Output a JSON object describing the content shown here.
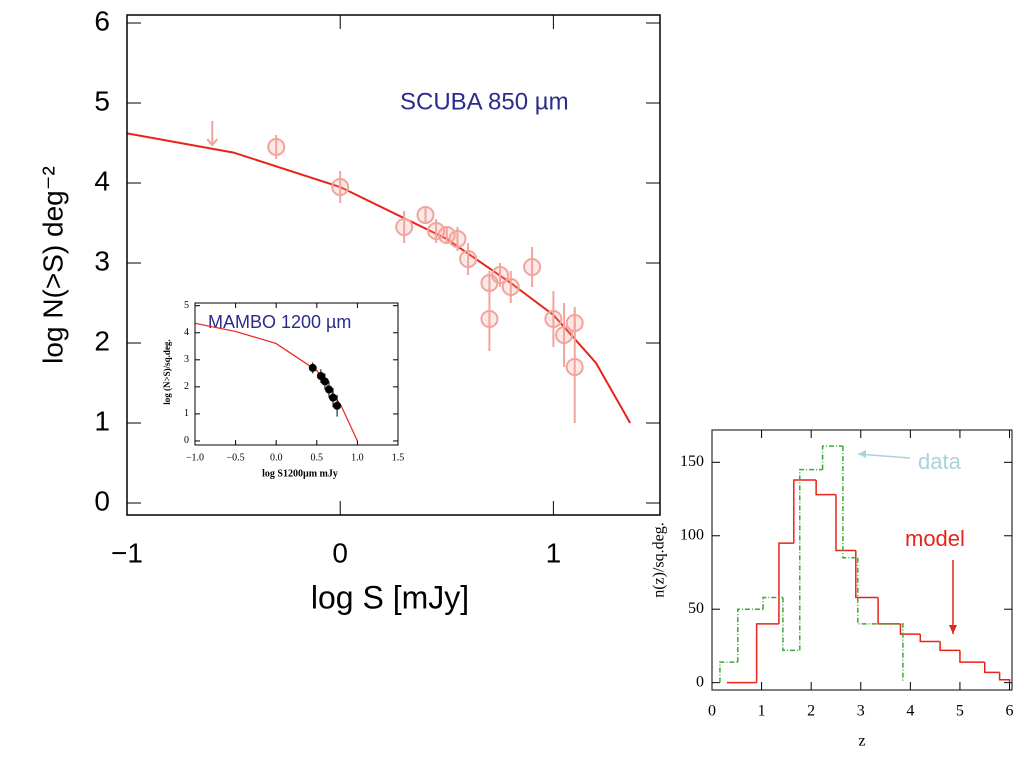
{
  "chart_data": [
    {
      "type": "scatter",
      "title": "SCUBA 850 µm",
      "xlabel": "log S [mJy]",
      "ylabel": "log N(>S) deg⁻²",
      "xlim": [
        -1,
        1.5
      ],
      "ylim": [
        -0.15,
        6.1
      ],
      "xticks": [
        {
          "value": -1,
          "label": "−1"
        },
        0,
        1
      ],
      "yticks": [
        0,
        1,
        2,
        3,
        4,
        5,
        6
      ],
      "model": {
        "color": "#e8231a",
        "x": [
          -1,
          -0.5,
          0,
          0.5,
          0.8,
          1.0,
          1.2,
          1.36
        ],
        "values": [
          4.62,
          4.38,
          3.95,
          3.3,
          2.75,
          2.35,
          1.75,
          1.0
        ]
      },
      "data": {
        "color": "#f2a49c",
        "x": [
          -0.3,
          0.0,
          0.3,
          0.4,
          0.45,
          0.5,
          0.55,
          0.6,
          0.7,
          0.7,
          0.75,
          0.8,
          0.9,
          1.0,
          1.05,
          1.1,
          1.1
        ],
        "values": [
          4.45,
          3.95,
          3.45,
          3.6,
          3.4,
          3.35,
          3.3,
          3.05,
          2.75,
          2.3,
          2.85,
          2.7,
          2.95,
          2.3,
          2.1,
          1.7,
          2.25
        ],
        "errors": [
          0.15,
          0.2,
          0.2,
          0.1,
          0.15,
          0.1,
          0.15,
          0.2,
          0.15,
          0.4,
          0.15,
          0.2,
          0.25,
          0.35,
          0.4,
          0.7,
          0.2
        ]
      },
      "limits": {
        "x": [
          -0.6
        ],
        "values": [
          4.65
        ]
      }
    },
    {
      "type": "scatter",
      "title": "MAMBO 1200 µm",
      "xlabel": "log S1200µm mJy",
      "ylabel": "log (N>S)/sq.deg.",
      "xlim": [
        -1.0,
        1.5
      ],
      "ylim": [
        -0.15,
        5.1
      ],
      "xticks": [
        {
          "value": -1.0,
          "label": "−1.0"
        },
        {
          "value": -0.5,
          "label": "−0.5"
        },
        {
          "value": 0.0,
          "label": "0.0"
        },
        0.5,
        {
          "value": 1.0,
          "label": "1.0"
        },
        1.5
      ],
      "yticks": [
        0,
        1,
        2,
        3,
        4,
        5
      ],
      "model": {
        "color": "#e8231a",
        "x": [
          -1,
          -0.5,
          0,
          0.5,
          0.8,
          1.0
        ],
        "values": [
          4.35,
          4.05,
          3.6,
          2.6,
          1.3,
          0
        ]
      },
      "data": {
        "color": "#000000",
        "x": [
          0.45,
          0.55,
          0.6,
          0.65,
          0.7,
          0.75
        ],
        "values": [
          2.7,
          2.4,
          2.2,
          1.9,
          1.6,
          1.3
        ],
        "errors": [
          0.2,
          0.25,
          0.3,
          0.3,
          0.35,
          0.4
        ]
      }
    },
    {
      "type": "histogram",
      "xlabel": "z",
      "ylabel": "n(z)/sq.deg.",
      "xlim": [
        0,
        6.05
      ],
      "ylim": [
        -5,
        172
      ],
      "xticks": [
        0,
        1,
        2,
        3,
        4,
        5,
        6
      ],
      "yticks": [
        0,
        50,
        100,
        150
      ],
      "series": [
        {
          "name": "model",
          "color": "#e8231a",
          "dash": false,
          "bins": [
            0.3,
            0.9,
            1.35,
            1.65,
            2.1,
            2.5,
            2.9,
            3.35,
            3.8,
            4.2,
            4.6,
            5.0,
            5.5,
            5.8,
            6.0
          ],
          "values": [
            0,
            40,
            95,
            138,
            128,
            90,
            58,
            40,
            33,
            28,
            22,
            14,
            7,
            2
          ]
        },
        {
          "name": "data",
          "color": "#3aaa35",
          "dash": true,
          "bins": [
            0.16,
            0.52,
            1.03,
            1.43,
            1.77,
            2.23,
            2.64,
            2.94,
            3.85
          ],
          "values": [
            14,
            50,
            58,
            22,
            145,
            161,
            85,
            40
          ]
        }
      ]
    }
  ]
}
